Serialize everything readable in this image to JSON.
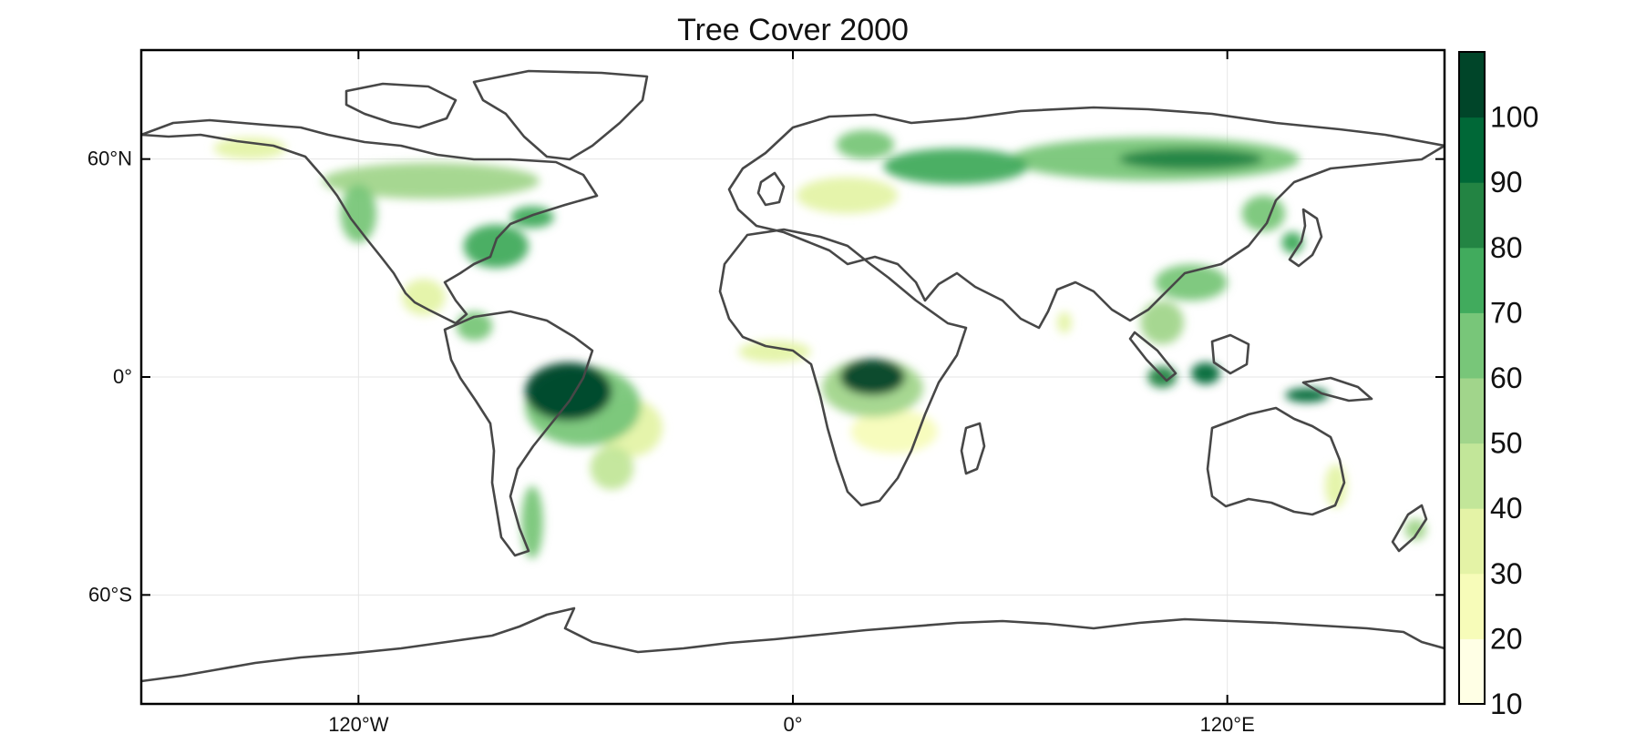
{
  "title": "Tree Cover 2000",
  "map": {
    "extent": {
      "lon": [
        -180,
        180
      ],
      "lat": [
        -90,
        90
      ]
    },
    "lat_ticks": [
      {
        "value": 60,
        "label": "60°N"
      },
      {
        "value": 0,
        "label": "0°"
      },
      {
        "value": -60,
        "label": "60°S"
      }
    ],
    "lon_ticks": [
      {
        "value": -120,
        "label": "120°W"
      },
      {
        "value": 0,
        "label": "0°"
      },
      {
        "value": 120,
        "label": "120°E"
      }
    ],
    "grid": true,
    "projection": "equirectangular",
    "outline_color": "#474747",
    "regions": [
      {
        "name": "amazon",
        "lon": -62,
        "lat": -4,
        "rx": 12,
        "ry": 8,
        "level": 95
      },
      {
        "name": "amazon-edge",
        "lon": -58,
        "lat": -8,
        "rx": 16,
        "ry": 11,
        "level": 55
      },
      {
        "name": "brazil-east",
        "lon": -45,
        "lat": -14,
        "rx": 9,
        "ry": 8,
        "level": 30
      },
      {
        "name": "brazil-south",
        "lon": -50,
        "lat": -25,
        "rx": 6,
        "ry": 6,
        "level": 40
      },
      {
        "name": "andes-south",
        "lon": -72,
        "lat": -40,
        "rx": 3,
        "ry": 10,
        "level": 60
      },
      {
        "name": "central-america",
        "lon": -88,
        "lat": 14,
        "rx": 5,
        "ry": 4,
        "level": 55
      },
      {
        "name": "mexico",
        "lon": -102,
        "lat": 22,
        "rx": 6,
        "ry": 5,
        "level": 30
      },
      {
        "name": "us-east",
        "lon": -82,
        "lat": 36,
        "rx": 9,
        "ry": 6,
        "level": 65
      },
      {
        "name": "us-northeast",
        "lon": -72,
        "lat": 44,
        "rx": 6,
        "ry": 3,
        "level": 70
      },
      {
        "name": "us-west",
        "lon": -120,
        "lat": 45,
        "rx": 5,
        "ry": 8,
        "level": 55
      },
      {
        "name": "canada-boreal",
        "lon": -100,
        "lat": 54,
        "rx": 30,
        "ry": 5,
        "level": 50
      },
      {
        "name": "alaska",
        "lon": -150,
        "lat": 63,
        "rx": 10,
        "ry": 3,
        "level": 30
      },
      {
        "name": "congo",
        "lon": 22,
        "lat": 0,
        "rx": 9,
        "ry": 5,
        "level": 95
      },
      {
        "name": "congo-edge",
        "lon": 22,
        "lat": -3,
        "rx": 14,
        "ry": 8,
        "level": 50
      },
      {
        "name": "africa-south",
        "lon": 28,
        "lat": -15,
        "rx": 12,
        "ry": 6,
        "level": 25
      },
      {
        "name": "west-africa",
        "lon": -5,
        "lat": 7,
        "rx": 10,
        "ry": 3,
        "level": 30
      },
      {
        "name": "scandinavia",
        "lon": 20,
        "lat": 64,
        "rx": 8,
        "ry": 4,
        "level": 60
      },
      {
        "name": "europe",
        "lon": 15,
        "lat": 50,
        "rx": 14,
        "ry": 5,
        "level": 35
      },
      {
        "name": "russia-west",
        "lon": 45,
        "lat": 58,
        "rx": 20,
        "ry": 5,
        "level": 65
      },
      {
        "name": "siberia",
        "lon": 100,
        "lat": 60,
        "rx": 40,
        "ry": 6,
        "level": 55
      },
      {
        "name": "siberia-dense",
        "lon": 110,
        "lat": 60,
        "rx": 20,
        "ry": 3,
        "level": 75
      },
      {
        "name": "china-south",
        "lon": 110,
        "lat": 26,
        "rx": 10,
        "ry": 5,
        "level": 55
      },
      {
        "name": "east-asia-ne",
        "lon": 130,
        "lat": 45,
        "rx": 6,
        "ry": 5,
        "level": 60
      },
      {
        "name": "japan",
        "lon": 138,
        "lat": 37,
        "rx": 3,
        "ry": 3,
        "level": 70
      },
      {
        "name": "se-asia",
        "lon": 102,
        "lat": 15,
        "rx": 6,
        "ry": 6,
        "level": 50
      },
      {
        "name": "sumatra",
        "lon": 102,
        "lat": 0,
        "rx": 4,
        "ry": 3,
        "level": 75
      },
      {
        "name": "borneo",
        "lon": 114,
        "lat": 1,
        "rx": 4,
        "ry": 3,
        "level": 90
      },
      {
        "name": "new-guinea",
        "lon": 142,
        "lat": -5,
        "rx": 6,
        "ry": 2,
        "level": 85
      },
      {
        "name": "india-west",
        "lon": 75,
        "lat": 15,
        "rx": 2,
        "ry": 3,
        "level": 30
      },
      {
        "name": "australia-east",
        "lon": 150,
        "lat": -30,
        "rx": 3,
        "ry": 6,
        "level": 35
      },
      {
        "name": "new-zealand",
        "lon": 172,
        "lat": -42,
        "rx": 3,
        "ry": 3,
        "level": 50
      }
    ]
  },
  "colorbar": {
    "min": 10,
    "max": 100,
    "ticks": [
      "10",
      "20",
      "30",
      "40",
      "50",
      "60",
      "70",
      "80",
      "90",
      "100"
    ],
    "colors": [
      "#ffffe5",
      "#f7fcb9",
      "#e4f3a6",
      "#c2e699",
      "#a1d58b",
      "#78c679",
      "#41ab5d",
      "#238443",
      "#006837",
      "#004529"
    ]
  }
}
